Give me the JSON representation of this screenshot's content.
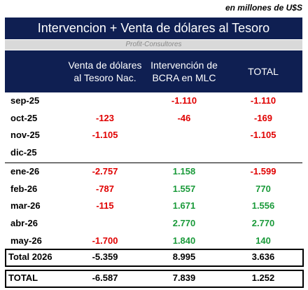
{
  "note": "en millones de U$S",
  "title": "Intervencion + Venta de dólares al Tesoro",
  "source": "Profit-Consultores",
  "table": {
    "headers": [
      null,
      "Venta de dólares\nal Tesoro Nac.",
      "Intervención de\nBCRA en MLC",
      "TOTAL"
    ],
    "groups": [
      [
        [
          "sep-25",
          null,
          "-1.110",
          "-1.110"
        ],
        [
          "oct-25",
          "-123",
          "-46",
          "-169"
        ],
        [
          "nov-25",
          "-1.105",
          null,
          "-1.105"
        ],
        [
          "dic-25",
          null,
          null,
          null
        ]
      ],
      [
        [
          "ene-26",
          "-2.757",
          "1.158",
          "-1.599"
        ],
        [
          "feb-26",
          "-787",
          "1.557",
          "770"
        ],
        [
          "mar-26",
          "-115",
          "1.671",
          "1.556"
        ],
        [
          "abr-26",
          null,
          "2.770",
          "2.770"
        ],
        [
          "may-26",
          "-1.700",
          "1.840",
          "140"
        ]
      ]
    ],
    "totals": [
      [
        "Total 2026",
        "-5.359",
        "8.995",
        "3.636"
      ],
      [
        "TOTAL",
        "-6.587",
        "7.839",
        "1.252"
      ]
    ]
  }
}
